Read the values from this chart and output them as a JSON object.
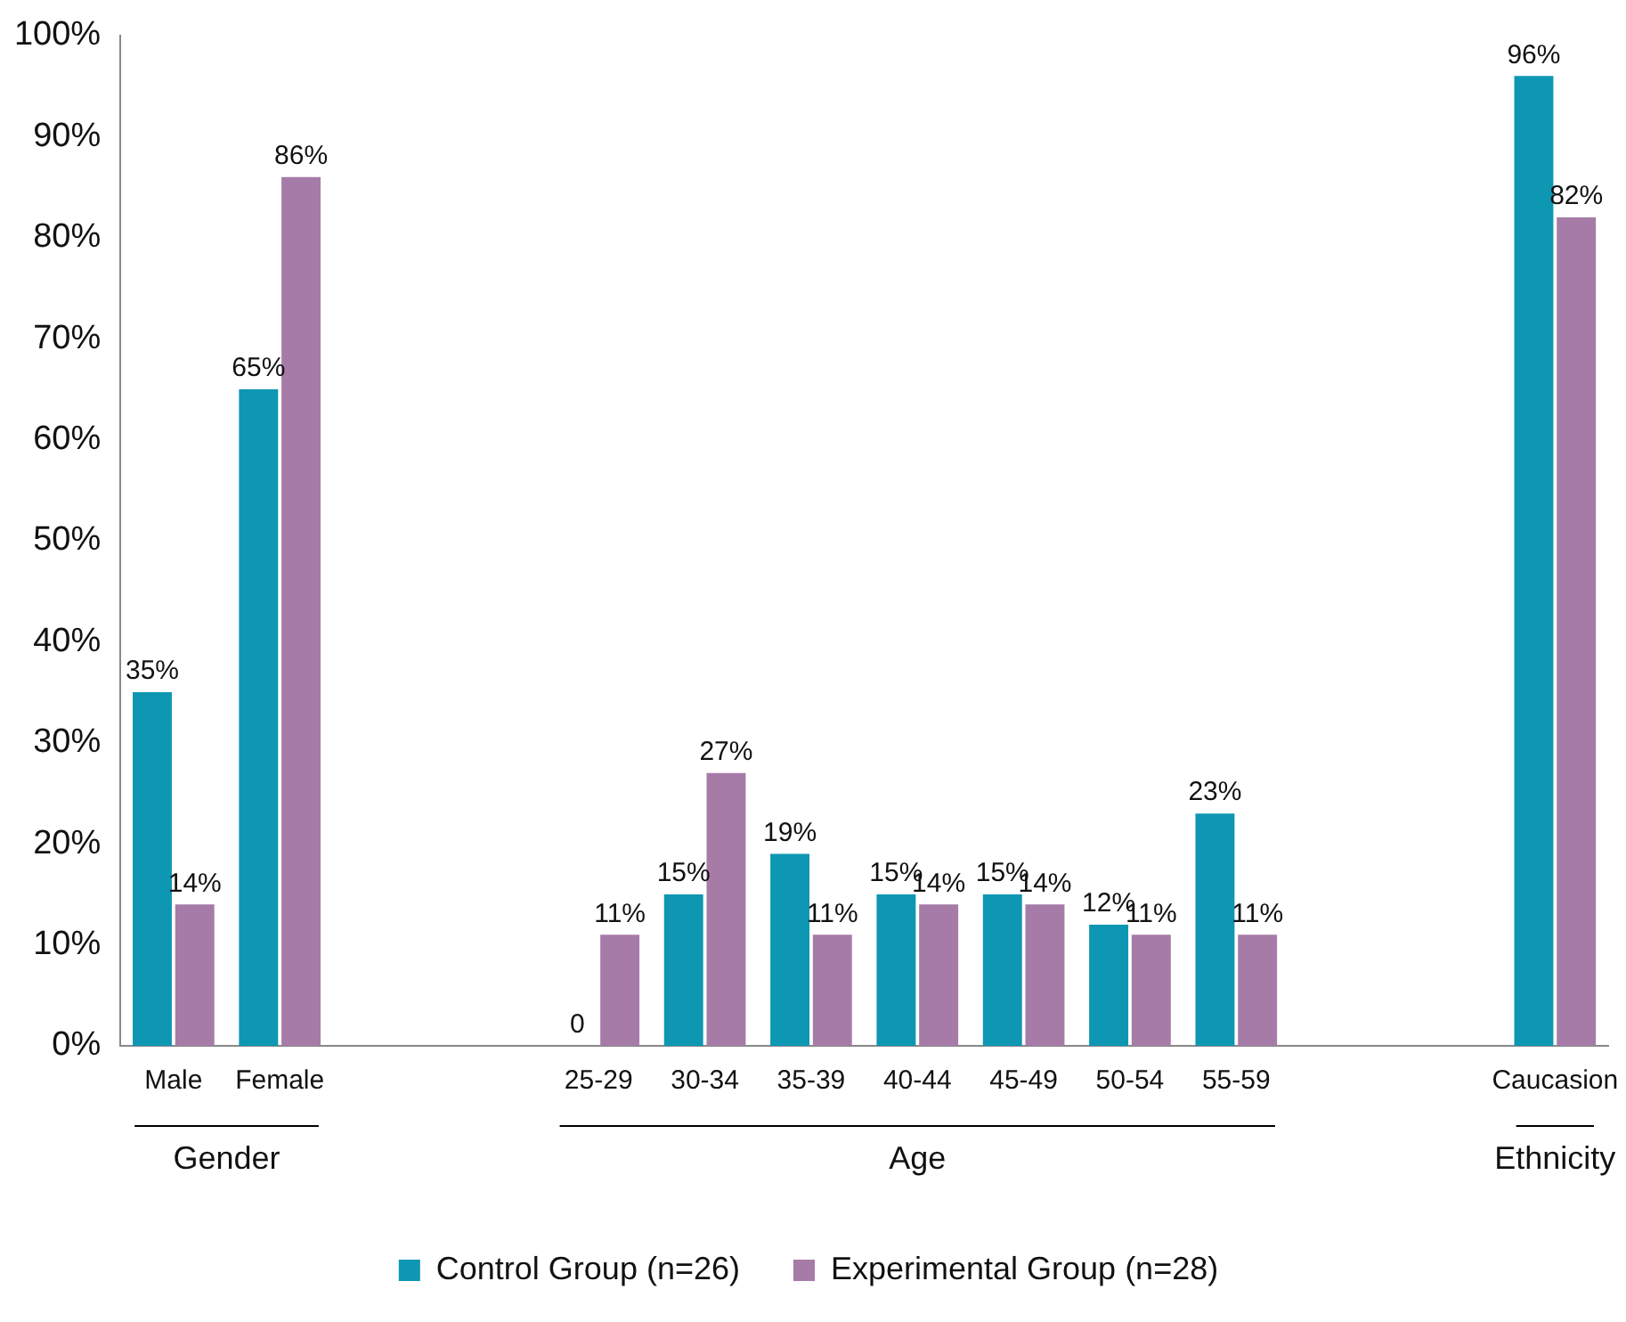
{
  "chart_data": {
    "type": "bar",
    "categories": [
      "Male",
      "Female",
      null,
      null,
      "25-29",
      "30-34",
      "35-39",
      "40-44",
      "45-49",
      "50-54",
      "55-59",
      null,
      null,
      "Caucasion"
    ],
    "series": [
      {
        "name": "Control Group (n=26)",
        "color": "#0e97b3",
        "values": [
          35,
          65,
          null,
          null,
          0,
          15,
          19,
          15,
          15,
          12,
          23,
          null,
          null,
          96
        ],
        "value_labels": [
          "35%",
          "65%",
          null,
          null,
          "0",
          "15%",
          "19%",
          "15%",
          "15%",
          "12%",
          "23%",
          null,
          null,
          "96%"
        ]
      },
      {
        "name": "Experimental Group (n=28)",
        "color": "#a67ba8",
        "values": [
          14,
          86,
          null,
          null,
          11,
          27,
          11,
          14,
          14,
          11,
          11,
          null,
          null,
          82
        ],
        "value_labels": [
          "14%",
          "86%",
          null,
          null,
          "11%",
          "27%",
          "11%",
          "14%",
          "14%",
          "11%",
          "11%",
          null,
          null,
          "82%"
        ]
      }
    ],
    "ylim": [
      0,
      100
    ],
    "yticks": [
      {
        "value": 0,
        "label": "0%"
      },
      {
        "value": 10,
        "label": "10%"
      },
      {
        "value": 20,
        "label": "20%"
      },
      {
        "value": 30,
        "label": "30%"
      },
      {
        "value": 40,
        "label": "40%"
      },
      {
        "value": 50,
        "label": "50%"
      },
      {
        "value": 60,
        "label": "60%"
      },
      {
        "value": 70,
        "label": "70%"
      },
      {
        "value": 80,
        "label": "80%"
      },
      {
        "value": 90,
        "label": "90%"
      },
      {
        "value": 100,
        "label": "100%"
      }
    ],
    "annotations": [
      "Gender",
      "Age",
      "Ethnicity"
    ],
    "grid": false,
    "legend": "bottom"
  }
}
